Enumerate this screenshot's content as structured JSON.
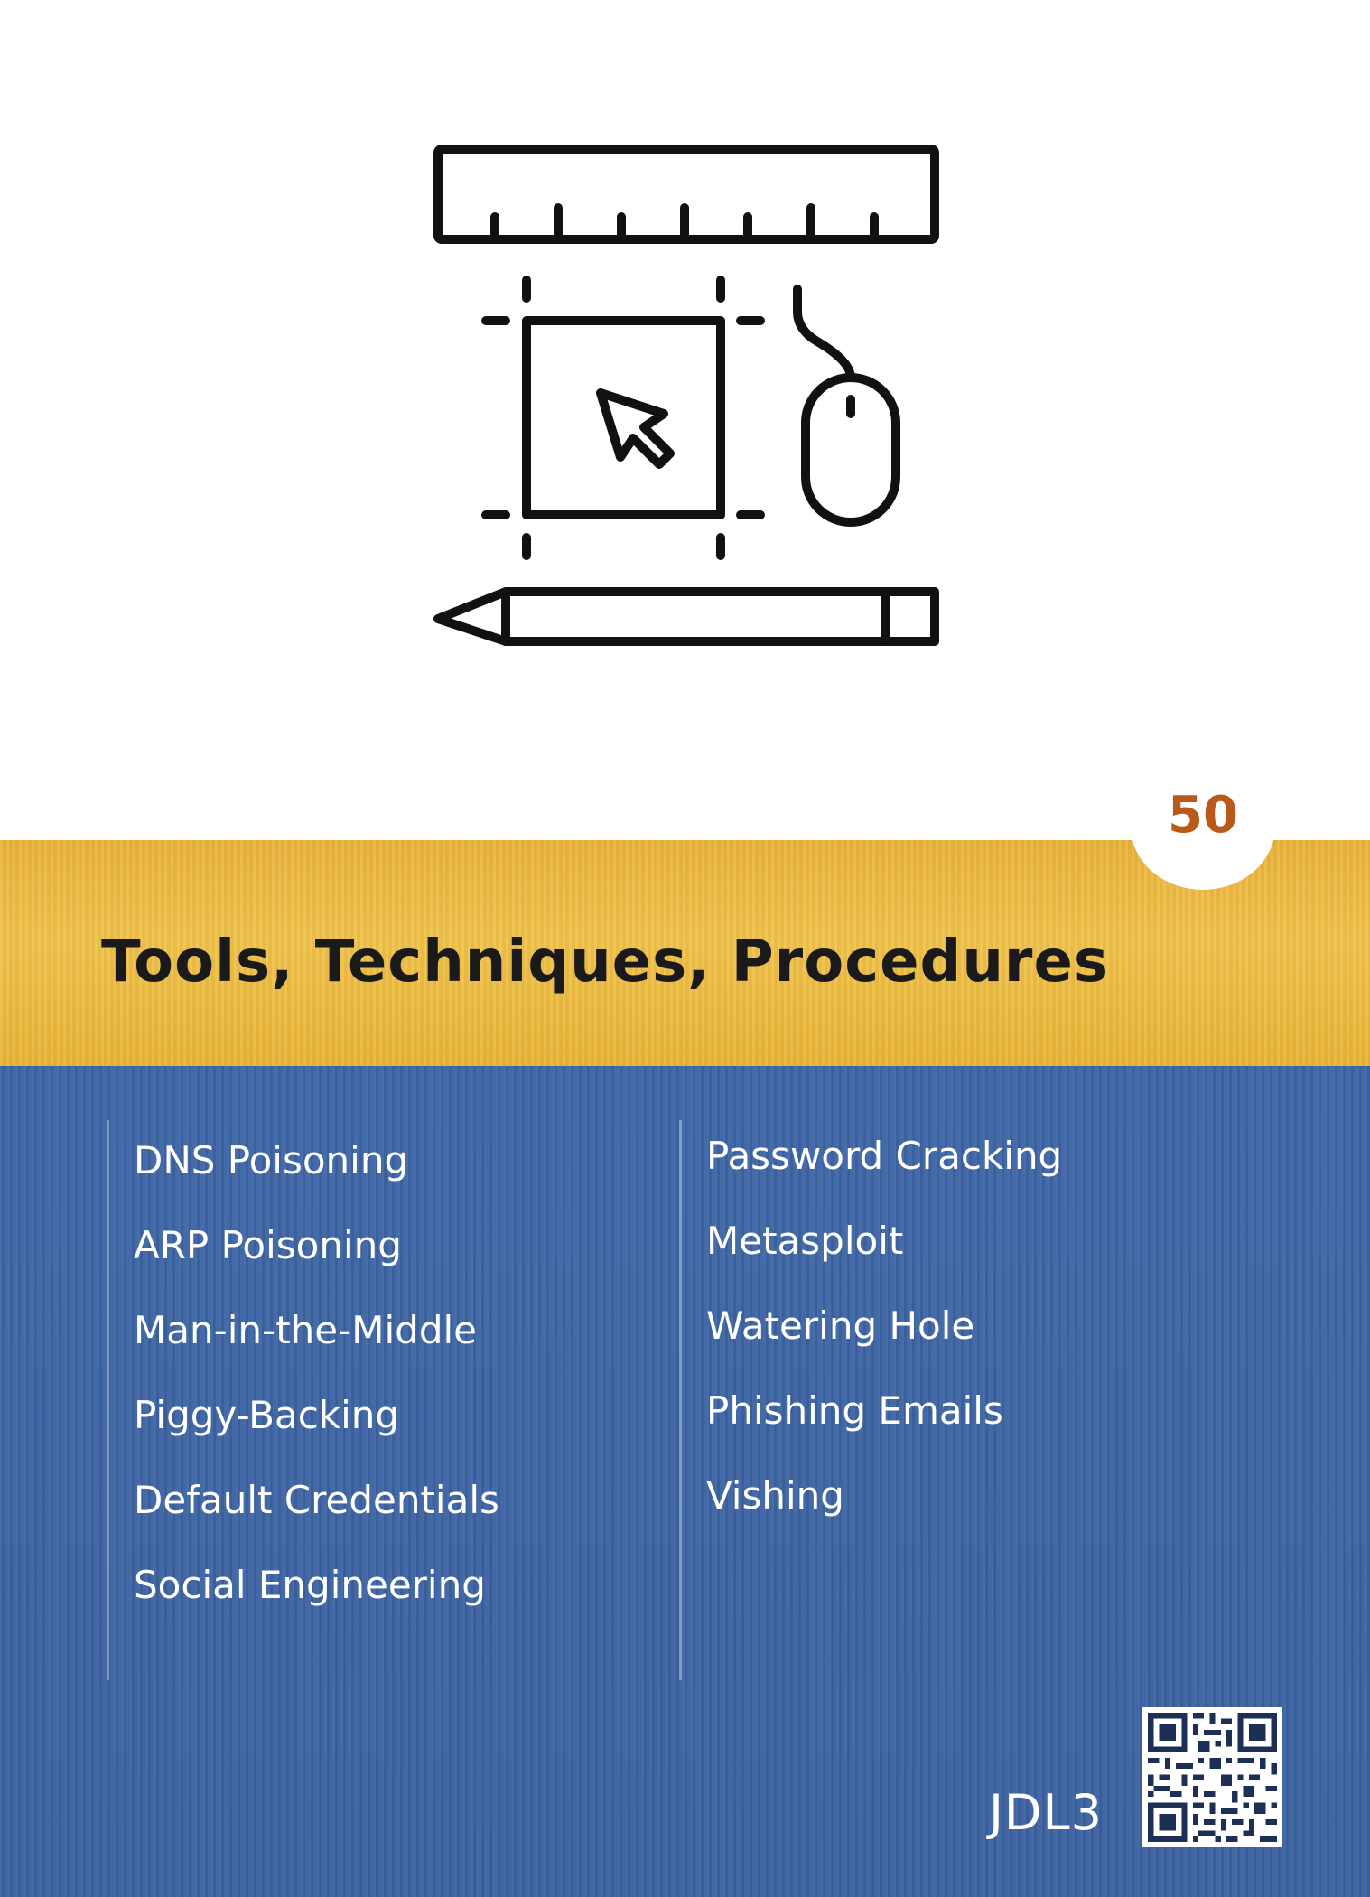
{
  "card": {
    "number": "50",
    "title": "Tools, Techniques, Procedures",
    "left_items": [
      "DNS Poisoning",
      "ARP Poisoning",
      "Man-in-the-Middle",
      "Piggy-Backing",
      "Default Credentials",
      "Social Engineering"
    ],
    "right_items": [
      "Password Cracking",
      "Metasploit",
      "Watering Hole",
      "Phishing Emails",
      "Vishing"
    ],
    "code": "JDL3"
  },
  "icons": {
    "illustration": "design-tools-icon",
    "qr": "qr-code-icon"
  },
  "colors": {
    "gold": "#eab33a",
    "blue": "#3e66a6",
    "number": "#b95a1a",
    "title": "#1a1a1a"
  }
}
